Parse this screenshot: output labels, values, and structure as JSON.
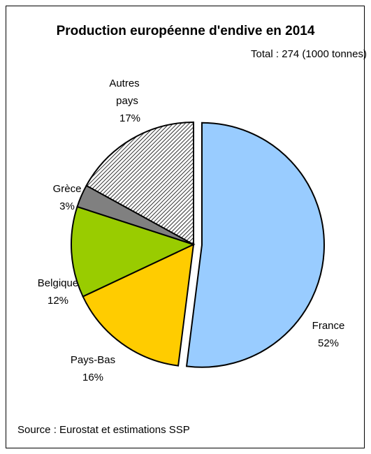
{
  "chart_data": {
    "type": "pie",
    "title": "Production européenne d'endive en 2014",
    "subtitle": "Total : 274 (1000 tonnes)",
    "source": "Source : Eurostat et estimations SSP",
    "slices": [
      {
        "name": "France",
        "value": 52,
        "label": "52%",
        "color": "#99ccff",
        "pattern": "none",
        "exploded": true
      },
      {
        "name": "Pays-Bas",
        "value": 16,
        "label": "16%",
        "color": "#ffcc00",
        "pattern": "none",
        "exploded": false
      },
      {
        "name": "Belgique",
        "value": 12,
        "label": "12%",
        "color": "#99cc00",
        "pattern": "none",
        "exploded": false
      },
      {
        "name": "Grèce",
        "value": 3,
        "label": "3%",
        "color": "#808080",
        "pattern": "none",
        "exploded": false
      },
      {
        "name": "Autres pays",
        "value": 17,
        "label": "17%",
        "color": "#ffffff",
        "pattern": "diagonal-hatch",
        "exploded": false
      }
    ]
  }
}
